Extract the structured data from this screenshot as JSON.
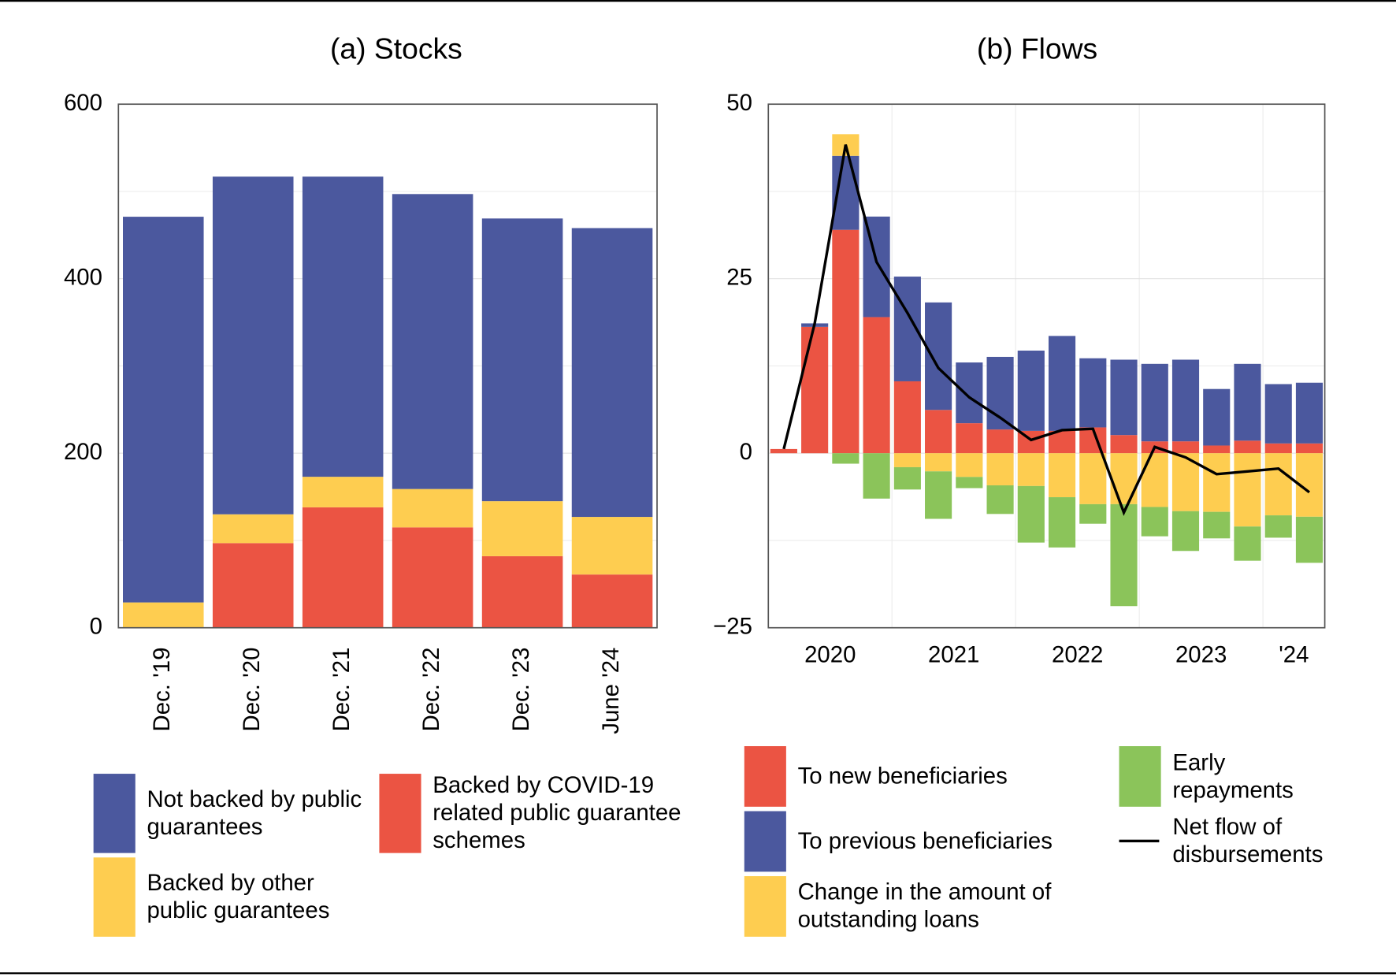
{
  "chart_data": [
    {
      "type": "bar",
      "title": "(a) Stocks",
      "categories": [
        "Dec. '19",
        "Dec. '20",
        "Dec. '21",
        "Dec. '22",
        "Dec. '23",
        "June '24"
      ],
      "series": [
        {
          "name": "Backed by COVID-19 related public guarantee schemes",
          "color": "#eb5443",
          "values": [
            0,
            97,
            138,
            115,
            82,
            61
          ]
        },
        {
          "name": "Backed by other public guarantees",
          "color": "#fecd50",
          "values": [
            29,
            33,
            35,
            44,
            63,
            66
          ]
        },
        {
          "name": "Not backed by public guarantees",
          "color": "#4b589e",
          "values": [
            442,
            387,
            344,
            338,
            324,
            331
          ]
        }
      ],
      "ylim": [
        0,
        600
      ],
      "yticks": [
        0,
        200,
        400,
        600
      ],
      "minor_yticks": [
        100,
        300,
        500
      ],
      "grid": true
    },
    {
      "type": "bar",
      "title": "(b) Flows",
      "categories": [
        null,
        null,
        null,
        null,
        null,
        null,
        null,
        null,
        null,
        null,
        null,
        null,
        null,
        null,
        null,
        null,
        null,
        null
      ],
      "xticks": [
        {
          "value": 1.5,
          "label": "2020"
        },
        {
          "value": 5.5,
          "label": "2021"
        },
        {
          "value": 9.5,
          "label": "2022"
        },
        {
          "value": 13.5,
          "label": "2023"
        },
        {
          "value": 16.5,
          "label": "'24"
        }
      ],
      "xgrid": [
        3.5,
        7.5,
        11.5,
        15.5
      ],
      "series": [
        {
          "name": "To new beneficiaries",
          "color": "#eb5443",
          "values": [
            0.6,
            18.1,
            32,
            19.5,
            10.3,
            6.2,
            4.3,
            3.4,
            3.2,
            3.2,
            3.7,
            2.6,
            1.7,
            1.7,
            1.1,
            1.8,
            1.4,
            1.4
          ]
        },
        {
          "name": "To previous beneficiaries",
          "color": "#4b589e",
          "values": [
            0,
            0.5,
            10.6,
            14.4,
            15,
            15.4,
            8.7,
            10.4,
            11.5,
            13.6,
            9.9,
            10.8,
            11.1,
            11.7,
            8.1,
            11,
            8.5,
            8.7
          ]
        },
        {
          "name": "Change in the amount of outstanding loans",
          "color": "#fecd50",
          "values": [
            0,
            0,
            3.1,
            0,
            -2.0,
            -2.6,
            -3.4,
            -4.6,
            -4.7,
            -6.3,
            -7.3,
            -7.3,
            -7.7,
            -8.3,
            -8.4,
            -10.5,
            -8.9,
            -9.1
          ]
        },
        {
          "name": "Early repayments",
          "color": "#8bc45a",
          "values": [
            0,
            0,
            -1.5,
            -6.5,
            -3.2,
            -6.8,
            -1.6,
            -4.1,
            -8.1,
            -7.2,
            -2.8,
            -14.6,
            -4.2,
            -5.7,
            -3.8,
            -4.9,
            -3.2,
            -6.6
          ]
        },
        {
          "name": "Net flow of disbursements",
          "type": "line",
          "color": "#000000",
          "values": [
            0.6,
            18.6,
            44.2,
            27.4,
            20.1,
            12.2,
            8.0,
            5.1,
            1.9,
            3.3,
            3.5,
            -8.5,
            0.9,
            -0.6,
            -3.0,
            -2.6,
            -2.2,
            -5.6
          ]
        }
      ],
      "ylim": [
        -25,
        50
      ],
      "yticks": [
        {
          "value": -25,
          "label": "−25"
        },
        0,
        25,
        50
      ],
      "minor_yticks": [
        -12.5,
        12.5,
        37.5
      ],
      "grid": true
    }
  ]
}
